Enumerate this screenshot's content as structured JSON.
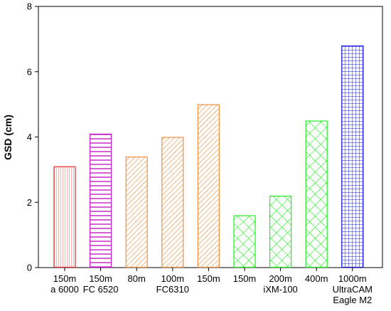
{
  "chart_data": {
    "type": "bar",
    "categories": [
      [
        "150m",
        "a 6000"
      ],
      [
        "150m",
        "FC 6520"
      ],
      [
        "80m"
      ],
      [
        "100m",
        "FC6310"
      ],
      [
        "150m"
      ],
      [
        "150m"
      ],
      [
        "200m",
        "iXM-100"
      ],
      [
        "400m"
      ],
      [
        "1000m",
        "UltraCAM",
        "Eagle M2"
      ]
    ],
    "values": [
      3.1,
      4.1,
      3.4,
      4.0,
      5.0,
      1.6,
      2.2,
      4.5,
      6.8
    ],
    "bar_colors": [
      "#ee2a2a",
      "#c21fc2",
      "#ee9040",
      "#ee9040",
      "#ee9040",
      "#22ee22",
      "#22ee22",
      "#22ee22",
      "#1818e6"
    ],
    "bar_patterns": [
      "vertical",
      "horizontal",
      "diagonal",
      "diagonal",
      "diagonal",
      "crosshatch",
      "crosshatch",
      "crosshatch",
      "grid"
    ],
    "ylabel": "GSD (cm)",
    "xlabel": "",
    "ylim": [
      0,
      8
    ],
    "yticks": [
      0,
      2,
      4,
      6,
      8
    ],
    "grid": false,
    "legend": "none"
  }
}
